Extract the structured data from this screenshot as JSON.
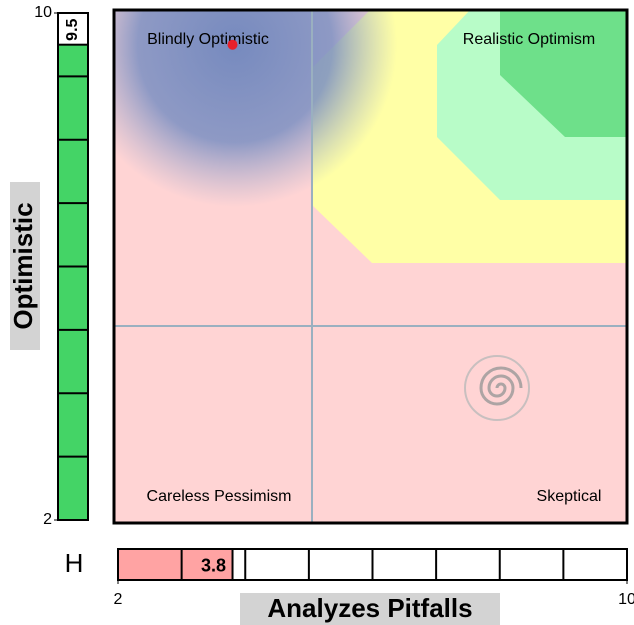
{
  "chart_data": {
    "type": "scatter",
    "x_label": "Analyzes Pitfalls",
    "y_label": "Optimistic",
    "quadrant_labels": [
      "Blindly Optimistic",
      "Realistic Optimism",
      "Careless Pessimism",
      "Skeptical"
    ],
    "marker_label": "H",
    "series": [
      {
        "x": [
          3.8
        ],
        "values": [
          9.5
        ],
        "color": "#e8202a"
      }
    ],
    "x_gauge_color": "#ffa3a3",
    "y_gauge_color": "#44d466",
    "xlim": [
      2,
      10
    ],
    "ylim": [
      2,
      10
    ],
    "xticks": [
      2,
      10
    ],
    "yticks": [
      2,
      10
    ]
  }
}
